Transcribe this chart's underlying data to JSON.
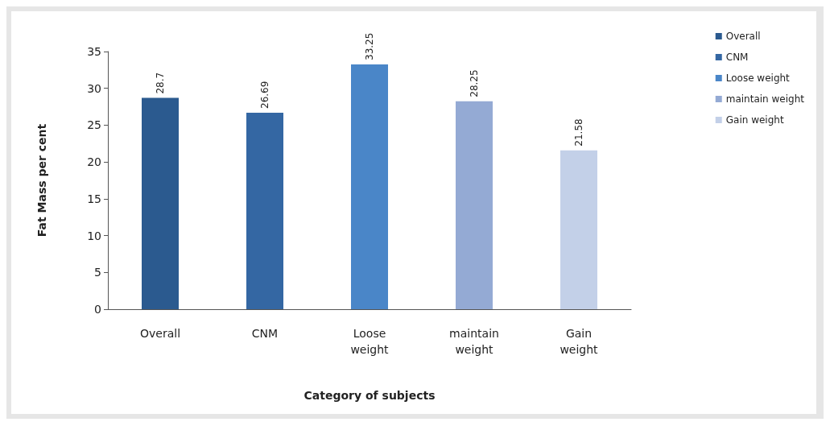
{
  "chart_data": {
    "type": "bar",
    "xlabel": "Category of subjects",
    "ylabel": "Fat Mass per cent",
    "categories": [
      "Overall",
      "CNM",
      "Loose\nweight",
      "maintain\nweight",
      "Gain\nweight"
    ],
    "series": [
      {
        "name": "Overall",
        "color": "#2b5a8f",
        "values": [
          28.7,
          null,
          null,
          null,
          null
        ]
      },
      {
        "name": "CNM",
        "color": "#3467a3",
        "values": [
          null,
          26.69,
          null,
          null,
          null
        ]
      },
      {
        "name": "Loose weight",
        "color": "#4a86c8",
        "values": [
          null,
          null,
          33.25,
          null,
          null
        ]
      },
      {
        "name": "maintain weight",
        "color": "#94aad4",
        "values": [
          null,
          null,
          null,
          28.25,
          null
        ]
      },
      {
        "name": "Gain weight",
        "color": "#c3d0e8",
        "values": [
          null,
          null,
          null,
          null,
          21.58
        ]
      }
    ],
    "ylim": [
      0,
      35
    ],
    "yticks": [
      0,
      5,
      10,
      15,
      20,
      25,
      30,
      35
    ],
    "grid": false,
    "legend": "right",
    "data_labels": true
  }
}
